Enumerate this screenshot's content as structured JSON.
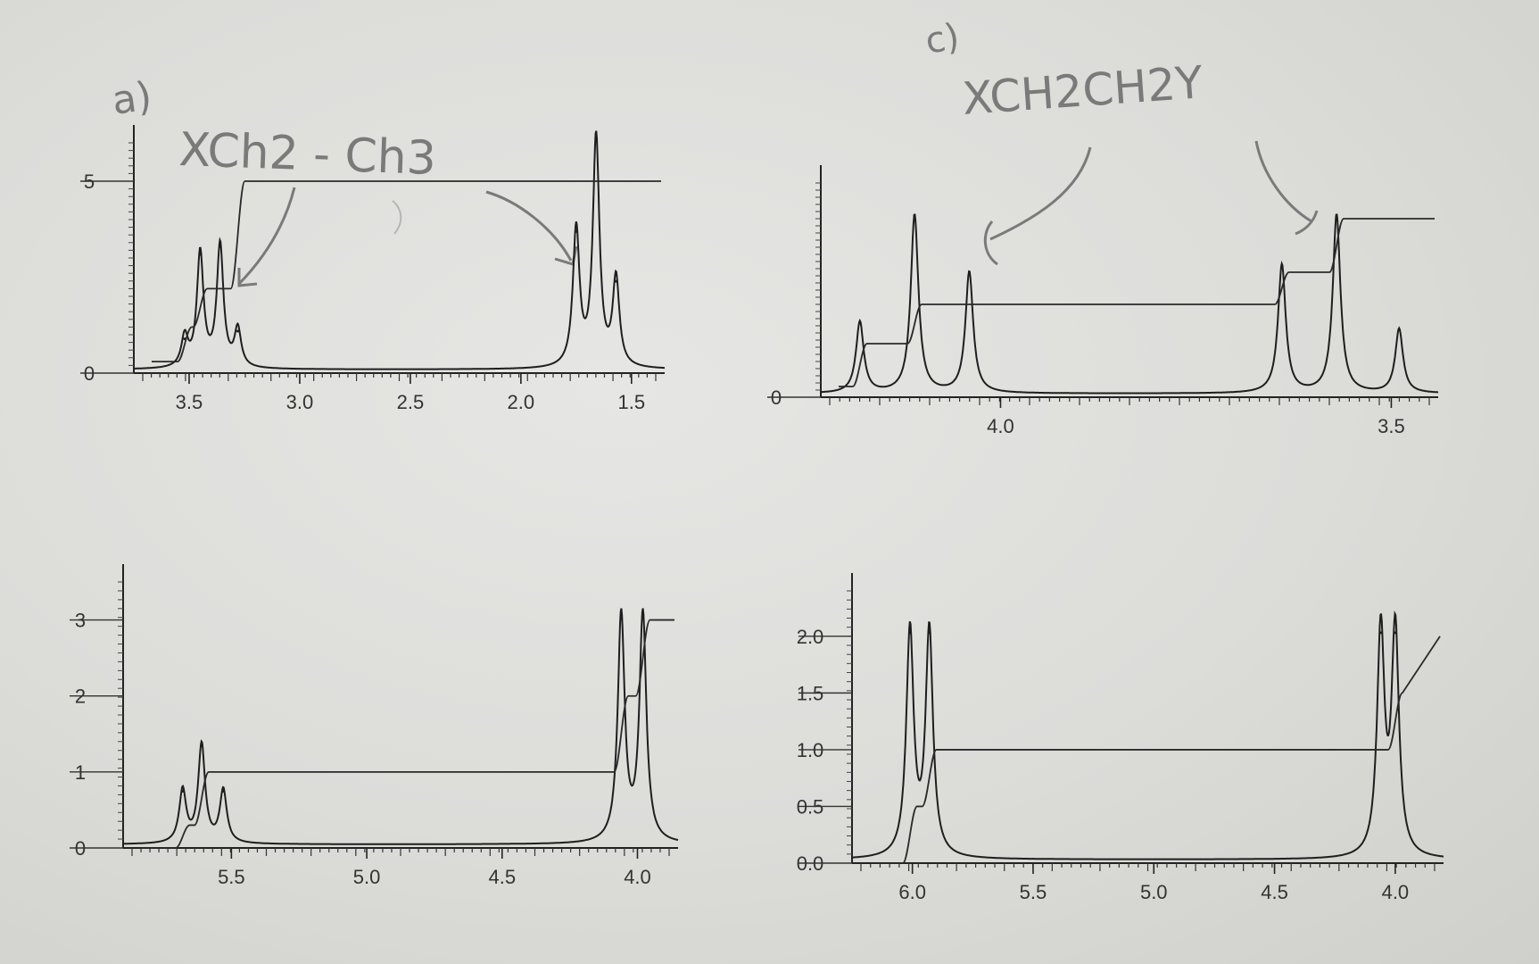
{
  "annotations": {
    "panel_a_label": "a)",
    "panel_a_formula": "XCh2 - Ch3",
    "panel_c_label": "c)",
    "panel_c_formula": "XCH2CH2Y"
  },
  "chart_data": [
    {
      "type": "line",
      "panel": "top-left",
      "x_tick_labels": [
        "3.5",
        "3.0",
        "2.5",
        "2.0",
        "1.5"
      ],
      "y_tick_labels": [
        "0",
        "5"
      ],
      "xlim": [
        3.75,
        1.35
      ],
      "ylim": [
        0,
        6
      ],
      "series": [
        {
          "peaks": [
            {
              "x": 3.52,
              "h": 0.8
            },
            {
              "x": 3.45,
              "h": 3.0
            },
            {
              "x": 3.36,
              "h": 3.2
            },
            {
              "x": 3.28,
              "h": 1.0
            },
            {
              "x": 1.75,
              "h": 3.6
            },
            {
              "x": 1.66,
              "h": 6.0
            },
            {
              "x": 1.57,
              "h": 2.3
            }
          ]
        }
      ],
      "integral_levels": [
        0.3,
        1.2,
        2.2,
        2.2,
        5.0
      ]
    },
    {
      "type": "line",
      "panel": "top-right",
      "x_tick_labels": [
        "4.0",
        "3.5"
      ],
      "y_tick_labels": [
        "0"
      ],
      "xlim": [
        4.23,
        3.44
      ],
      "ylim": [
        0,
        6
      ],
      "series": [
        {
          "peaks": [
            {
              "x": 4.18,
              "h": 2.0
            },
            {
              "x": 4.11,
              "h": 5.0
            },
            {
              "x": 4.04,
              "h": 3.4
            },
            {
              "x": 3.64,
              "h": 3.6
            },
            {
              "x": 3.57,
              "h": 5.0
            },
            {
              "x": 3.49,
              "h": 1.8
            }
          ]
        }
      ],
      "integral_levels": [
        0.3,
        1.5,
        2.6,
        2.6,
        3.5,
        5.0
      ]
    },
    {
      "type": "line",
      "panel": "bottom-left",
      "x_tick_labels": [
        "5.5",
        "5.0",
        "4.5",
        "4.0"
      ],
      "y_tick_labels": [
        "0",
        "1",
        "2",
        "3"
      ],
      "xlim": [
        5.9,
        3.85
      ],
      "ylim": [
        0,
        3.5
      ],
      "series": [
        {
          "peaks": [
            {
              "x": 5.68,
              "h": 0.7
            },
            {
              "x": 5.61,
              "h": 1.3
            },
            {
              "x": 5.53,
              "h": 0.7
            },
            {
              "x": 4.06,
              "h": 3.0
            },
            {
              "x": 3.98,
              "h": 3.0
            }
          ]
        }
      ],
      "integral_levels": [
        0.0,
        0.3,
        1.0,
        1.0,
        2.0,
        3.0
      ]
    },
    {
      "type": "line",
      "panel": "bottom-right",
      "x_tick_labels": [
        "6.0",
        "5.5",
        "5.0",
        "4.5",
        "4.0"
      ],
      "y_tick_labels": [
        "0.0",
        "0.5",
        "1.0",
        "1.5",
        "2.0"
      ],
      "xlim": [
        6.25,
        3.8
      ],
      "ylim": [
        0,
        2.4
      ],
      "series": [
        {
          "peaks": [
            {
              "x": 6.01,
              "h": 2.0
            },
            {
              "x": 5.93,
              "h": 2.0
            },
            {
              "x": 4.06,
              "h": 2.0
            },
            {
              "x": 4.0,
              "h": 2.0
            }
          ]
        }
      ],
      "integral_levels": [
        0.0,
        0.5,
        1.0,
        1.0,
        1.5,
        2.0
      ]
    }
  ]
}
